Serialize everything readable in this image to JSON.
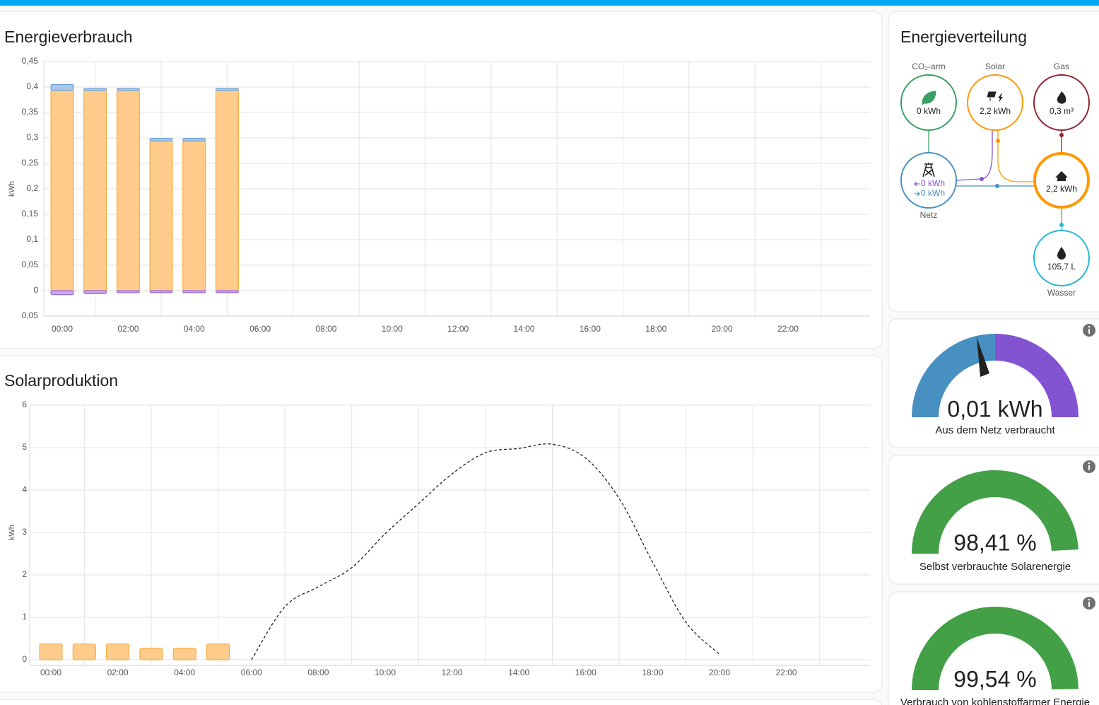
{
  "chart_data": [
    {
      "type": "bar",
      "title": "Energieverbrauch",
      "y_label": "kWh",
      "stacked": true,
      "grid": true,
      "categories": [
        "00:00",
        null,
        "02:00",
        null,
        "04:00",
        null,
        "06:00",
        null,
        "08:00",
        null,
        "10:00",
        null,
        "12:00",
        null,
        "14:00",
        null,
        "16:00",
        null,
        "18:00",
        null,
        "20:00",
        null,
        "22:00",
        null
      ],
      "series": [
        {
          "color": "#ffcc8c",
          "edge_color": "#f5a431",
          "values": [
            0.393,
            0.393,
            0.393,
            0.294,
            0.294,
            0.393,
            null,
            null,
            null,
            null,
            null,
            null,
            null,
            null,
            null,
            null,
            null,
            null,
            null,
            null,
            null,
            null,
            null,
            null
          ]
        },
        {
          "color": "#a9c7e6",
          "edge_color": "#5f98cf",
          "values": [
            0.012,
            0.004,
            0.004,
            0.005,
            0.005,
            0.004,
            null,
            null,
            null,
            null,
            null,
            null,
            null,
            null,
            null,
            null,
            null,
            null,
            null,
            null,
            null,
            null,
            null,
            null
          ]
        },
        {
          "color": "#c8aaf0",
          "edge_color": "#8456d8",
          "values": [
            -0.008,
            -0.006,
            -0.004,
            -0.004,
            -0.004,
            -0.004,
            null,
            null,
            null,
            null,
            null,
            null,
            null,
            null,
            null,
            null,
            null,
            null,
            null,
            null,
            null,
            null,
            null,
            null
          ]
        }
      ],
      "ylim": [
        -0.05,
        0.45
      ],
      "yticks": [
        {
          "value": -0.05,
          "label": "0,05"
        },
        0,
        {
          "value": 0.05,
          "label": "0,05"
        },
        {
          "value": 0.1,
          "label": "0,1"
        },
        {
          "value": 0.15,
          "label": "0,15"
        },
        {
          "value": 0.2,
          "label": "0,2"
        },
        {
          "value": 0.25,
          "label": "0,25"
        },
        {
          "value": 0.3,
          "label": "0,3"
        },
        {
          "value": 0.35,
          "label": "0,35"
        },
        {
          "value": 0.4,
          "label": "0,4"
        },
        {
          "value": 0.45,
          "label": "0,45"
        }
      ]
    },
    {
      "type": "bar",
      "title": "Solarproduktion",
      "y_label": "kWh",
      "stacked": true,
      "grid": true,
      "categories": [
        "00:00",
        null,
        "02:00",
        null,
        "04:00",
        null,
        "06:00",
        null,
        "08:00",
        null,
        "10:00",
        null,
        "12:00",
        null,
        "14:00",
        null,
        "16:00",
        null,
        "18:00",
        null,
        "20:00",
        null,
        "22:00",
        null
      ],
      "series": [
        {
          "color": "#ffcc8c",
          "edge_color": "#f5a431",
          "values": [
            0.37,
            0.37,
            0.37,
            0.27,
            0.27,
            0.37,
            null,
            null,
            null,
            null,
            null,
            null,
            null,
            null,
            null,
            null,
            null,
            null,
            null,
            null,
            null,
            null,
            null,
            null
          ]
        },
        {
          "type": "line",
          "dashed": true,
          "color": "#222222",
          "values": [
            null,
            null,
            null,
            null,
            null,
            null,
            0,
            1.25,
            1.72,
            2.17,
            2.97,
            3.68,
            4.38,
            4.88,
            4.98,
            5.08,
            4.75,
            3.8,
            2.3,
            0.88,
            0.13,
            null,
            null,
            null
          ]
        }
      ],
      "ylim": [
        0,
        6
      ],
      "yticks": [
        0,
        1,
        2,
        3,
        4,
        5,
        6
      ]
    }
  ],
  "distribution": {
    "title": "Energieverteilung",
    "low_carbon": {
      "label": "CO₂-arm",
      "value": "0 kWh"
    },
    "solar": {
      "label": "Solar",
      "value": "2,2 kWh"
    },
    "gas": {
      "label": "Gas",
      "value": "0,3 m³"
    },
    "grid": {
      "label": "Netz",
      "to_grid": "0 kWh",
      "from_grid": "0 kWh"
    },
    "home": {
      "value": "2,2 kWh"
    },
    "water": {
      "label": "Wasser",
      "value": "105,7 L"
    }
  },
  "gauges": [
    {
      "value_label": "0,01 kWh",
      "label": "Aus dem Netz verbraucht"
    },
    {
      "value": 98.41,
      "value_label": "98,41 %",
      "range": [
        0,
        100
      ],
      "color": "#43a047",
      "label": "Selbst verbrauchte Solarenergie"
    },
    {
      "value": 99.54,
      "value_label": "99,54 %",
      "range": [
        0,
        100
      ],
      "color": "#43a047",
      "label": "Verbrauch von kohlenstoffarmer Energie"
    }
  ]
}
